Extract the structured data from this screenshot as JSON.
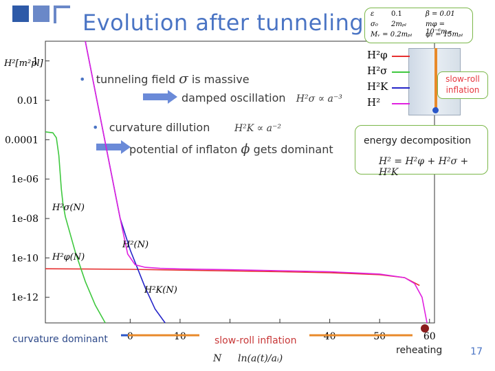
{
  "title": "Evolution after tunneling",
  "bullets": [
    {
      "prefix": "tunneling field ",
      "symbol": "σ",
      "suffix": " is massive"
    },
    {
      "text": "damped oscillation",
      "formula": "H²σ ∝ a⁻³"
    },
    {
      "text": "curvature dillution",
      "formula": "H²K ∝ a⁻²"
    },
    {
      "prefix": "potential of inflaton ",
      "symbol": "ϕ",
      "suffix": " gets dominant"
    }
  ],
  "params": {
    "row1": [
      "ε",
      "0.1",
      "β = 0.01"
    ],
    "row2": [
      "σ₀",
      "2mₚₗ",
      "mφ = 10⁻⁶mₚₗ"
    ],
    "row3": [
      "Mᵥ = 0.2mₚₗ",
      "φ₁ = 15mₚₗ"
    ]
  },
  "inset": {
    "legend": [
      "H²φ",
      "H²σ",
      "H²K",
      "H²"
    ],
    "note_line1": "slow-roll",
    "note_line2": "inflation",
    "colors": [
      "#e63030",
      "#3ec83e",
      "#2424c8",
      "#e020e0"
    ]
  },
  "energy": {
    "label": "energy decomposition",
    "formula": "H² = H²φ + H²σ + H²K"
  },
  "bottom": {
    "curvature": "curvature dominant",
    "slowroll": "slow-roll inflation",
    "reheating": "reheating",
    "xlabel_N": "N",
    "xlabel_def": "ln(a(t)/aᵢ)"
  },
  "page_number": "17",
  "chart_data": {
    "type": "line",
    "ylabel": "H²[m²pl]",
    "xlabel": "N   ln(a(t)/aᵢ)",
    "xlim": [
      -17,
      61
    ],
    "ylim_log10": [
      -13.3,
      1
    ],
    "x_ticks": [
      0,
      10,
      20,
      30,
      40,
      50,
      60
    ],
    "x_tick_labels": [
      "0",
      "10",
      "",
      "",
      "40",
      "50",
      "60"
    ],
    "y_ticks_log10": [
      0,
      -2,
      -4,
      -6,
      -8,
      -10,
      -12
    ],
    "y_tick_labels": [
      "1",
      "0.01",
      "0.0001",
      "1e-06",
      "1e-08",
      "1e-10",
      "1e-12"
    ],
    "series": [
      {
        "name": "H²φ(N)",
        "color": "#e63030",
        "x": [
          -17,
          0,
          10,
          20,
          30,
          40,
          50,
          55,
          58
        ],
        "y_log10": [
          -10.55,
          -10.58,
          -10.62,
          -10.66,
          -10.7,
          -10.75,
          -10.85,
          -11.0,
          -11.4
        ]
      },
      {
        "name": "H²σ(N)",
        "color": "#3ec83e",
        "x": [
          -17,
          -15.5,
          -14.8,
          -14.3,
          -13.8,
          -13.5,
          -13,
          -11,
          -9,
          -7,
          -5
        ],
        "y_log10": [
          -3.6,
          -3.65,
          -3.9,
          -4.8,
          -6.5,
          -7.2,
          -7.9,
          -9.7,
          -11.2,
          -12.4,
          -13.3
        ]
      },
      {
        "name": "H²K(N)",
        "color": "#2424c8",
        "x": [
          -9,
          -2,
          0,
          3,
          5,
          7
        ],
        "y_log10": [
          1,
          -8.0,
          -9.6,
          -11.5,
          -12.6,
          -13.3
        ]
      },
      {
        "name": "H²(N)",
        "color": "#e020e0",
        "x": [
          -9,
          -2,
          -0.5,
          1,
          3,
          6,
          10,
          20,
          30,
          40,
          50,
          55,
          57,
          58.5,
          59.5
        ],
        "y_log10": [
          1,
          -8.0,
          -9.8,
          -10.35,
          -10.48,
          -10.53,
          -10.56,
          -10.6,
          -10.65,
          -10.7,
          -10.82,
          -11.0,
          -11.3,
          -12.0,
          -13.3
        ]
      }
    ],
    "annotations": [
      "H²σ(N)",
      "H²(N)",
      "H²K(N)",
      "H²φ(N)"
    ]
  }
}
